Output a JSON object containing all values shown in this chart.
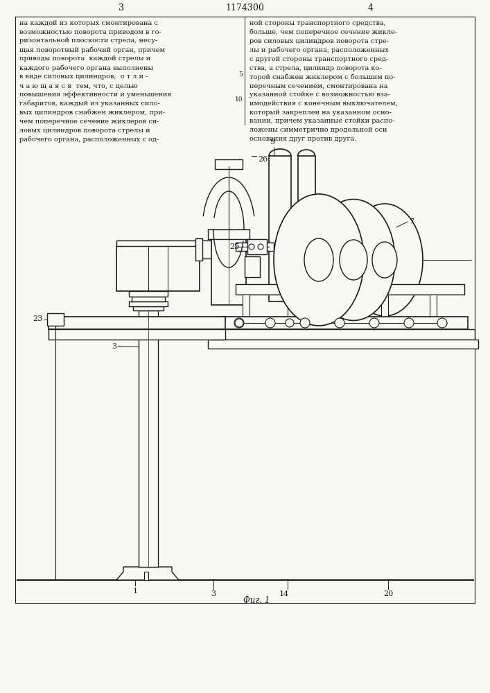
{
  "page_number_left": "3",
  "patent_number": "1174300",
  "page_number_right": "4",
  "text_left": "на каждой из которых смонтирована с\nвозможностью поворота приводом в го-\nризонтальной плоскости стрела, несу-\nщая поворотный рабочий орган, причем\nприводы поворота  каждой стрелы и\nкаждого рабочего органа выполнены\nв виде силовых цилиндров,  о т л и -\nч а ю щ а я с я  тем, что, с целью\nповышения эффективности и уменьшения\nгабаритов, каждый из указанных сило-\nвых цилиндров снабжен жиклером, при-\nчем поперечное сечение жиклеров си-\nловых цилиндров поворота стрелы и\nрабочего органа, расположенных с од-",
  "text_right": "ной стороны транспортного средства,\nбольше, чем поперечное сечение жикле-\nров силовых цилиндров поворота стре-\nлы и рабочего органа, расположенных\nс другой стороны транспортного сред-\nства, а стрела, цилиндр поворота ко-\nторой снабжен жиклером с большим по-\nперечным сечением, смонтирована на\nуказанной стойке с возможностью вза-\nимодействия с конечным выключателем,\nкоторый закреплен на указанном осно-\nвании, причем указанные стойки распо-\nложены симметрично продольной оси\nоснования друг против друга.",
  "fig_label": "Фиг. 1",
  "bg_color": "#f8f8f5",
  "line_color": "#1a1a1a",
  "text_color": "#1a1a1a"
}
